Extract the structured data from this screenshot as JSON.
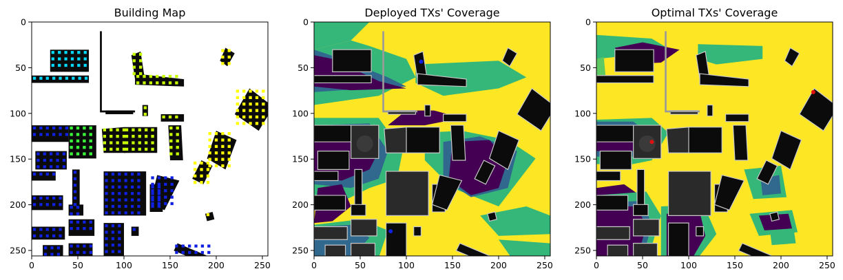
{
  "figure": {
    "background": "#ffffff",
    "palette": {
      "coverage_levels": [
        "#440154",
        "#31688e",
        "#35b779",
        "#5ec962",
        "#fde725"
      ],
      "building_dark": "#0b0b0b",
      "building_gray": "#2a2a2a",
      "building_edge": "#c8c8c8",
      "tx_deployed": "#1020e0",
      "tx_optimal": "#e01010"
    }
  },
  "chart_data": [
    {
      "type": "heatmap",
      "title": "Building Map",
      "xlabel": "",
      "ylabel": "",
      "xlim": [
        0,
        256
      ],
      "ylim": [
        256,
        0
      ],
      "xticks": [
        0,
        50,
        100,
        150,
        200,
        250
      ],
      "yticks": [
        0,
        50,
        100,
        150,
        200,
        250
      ],
      "grid": false,
      "legend": "none",
      "marker_colors": [
        "#1020e0",
        "#00d8ff",
        "#3cff3c",
        "#c8ff00",
        "#ffff00"
      ]
    },
    {
      "type": "heatmap",
      "title": "Deployed TXs' Coverage",
      "xlabel": "",
      "ylabel": "",
      "xlim": [
        0,
        256
      ],
      "ylim": [
        256,
        0
      ],
      "xticks": [
        0,
        50,
        100,
        150,
        200,
        250
      ],
      "yticks": [
        0,
        50,
        100,
        150,
        200,
        250
      ],
      "grid": false,
      "legend": "none",
      "transmitters": [
        {
          "x": 116,
          "y": 43,
          "color": "#1020e0"
        },
        {
          "x": 83,
          "y": 227,
          "color": "#1020e0"
        }
      ]
    },
    {
      "type": "heatmap",
      "title": "Optimal TXs' Coverage",
      "xlabel": "",
      "ylabel": "",
      "xlim": [
        0,
        256
      ],
      "ylim": [
        256,
        0
      ],
      "xticks": [
        0,
        50,
        100,
        150,
        200,
        250
      ],
      "yticks": [
        0,
        50,
        100,
        150,
        200,
        250
      ],
      "grid": false,
      "legend": "none",
      "transmitters": [
        {
          "x": 235,
          "y": 76,
          "color": "#e01010"
        },
        {
          "x": 60,
          "y": 130,
          "color": "#e01010"
        }
      ]
    }
  ]
}
